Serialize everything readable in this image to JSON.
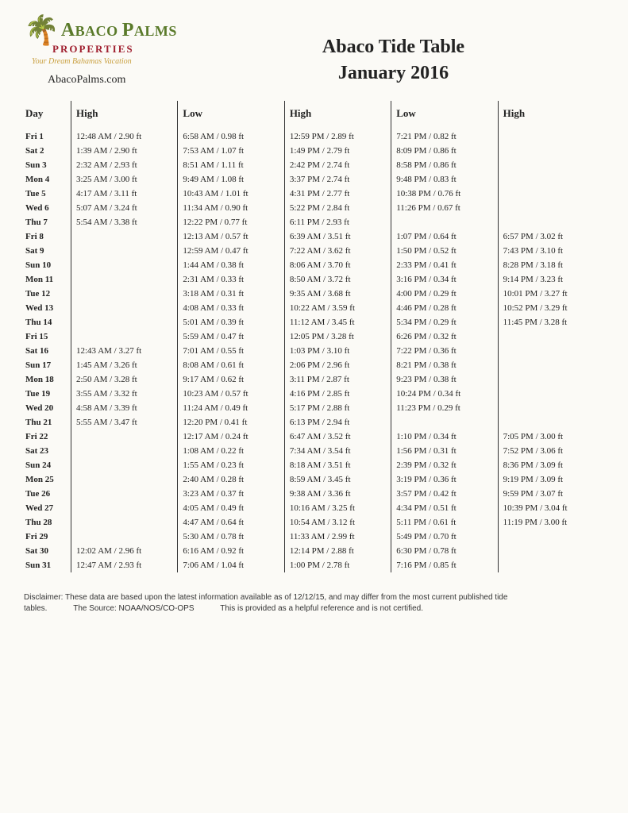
{
  "logo": {
    "line1_a": "A",
    "line1_rest": "BACO ",
    "line1_b": "P",
    "line1_rest2": "ALMS",
    "line2": "PROPERTIES",
    "tagline": "Your Dream Bahamas Vacation",
    "url": "AbacoPalms.com"
  },
  "title1": "Abaco Tide Table",
  "title2": "January  2016",
  "columns": [
    "Day",
    "High",
    "Low",
    "High",
    "Low",
    "High"
  ],
  "rows": [
    {
      "day": "Fri 1",
      "c": [
        [
          "12:48 AM",
          "2.90 ft"
        ],
        [
          "6:58 AM",
          "0.98 ft"
        ],
        [
          "12:59 PM",
          "2.89 ft"
        ],
        [
          "7:21 PM",
          "0.82 ft"
        ],
        [
          "",
          ""
        ]
      ]
    },
    {
      "day": "Sat 2",
      "c": [
        [
          "1:39 AM",
          "2.90 ft"
        ],
        [
          "7:53 AM",
          "1.07 ft"
        ],
        [
          "1:49 PM",
          "2.79 ft"
        ],
        [
          "8:09 PM",
          "0.86 ft"
        ],
        [
          "",
          ""
        ]
      ]
    },
    {
      "day": "Sun 3",
      "c": [
        [
          "2:32 AM",
          "2.93 ft"
        ],
        [
          "8:51 AM",
          "1.11 ft"
        ],
        [
          "2:42 PM",
          "2.74 ft"
        ],
        [
          "8:58 PM",
          "0.86 ft"
        ],
        [
          "",
          ""
        ]
      ]
    },
    {
      "day": "Mon 4",
      "c": [
        [
          "3:25 AM",
          "3.00 ft"
        ],
        [
          "9:49 AM",
          "1.08 ft"
        ],
        [
          "3:37 PM",
          "2.74 ft"
        ],
        [
          "9:48 PM",
          "0.83 ft"
        ],
        [
          "",
          ""
        ]
      ]
    },
    {
      "day": "Tue 5",
      "c": [
        [
          "4:17 AM",
          "3.11 ft"
        ],
        [
          "10:43 AM",
          "1.01 ft"
        ],
        [
          "4:31 PM",
          "2.77 ft"
        ],
        [
          "10:38 PM",
          "0.76 ft"
        ],
        [
          "",
          ""
        ]
      ]
    },
    {
      "day": "Wed 6",
      "c": [
        [
          "5:07 AM",
          "3.24 ft"
        ],
        [
          "11:34 AM",
          "0.90 ft"
        ],
        [
          "5:22 PM",
          "2.84 ft"
        ],
        [
          "11:26 PM",
          "0.67 ft"
        ],
        [
          "",
          ""
        ]
      ]
    },
    {
      "day": "Thu 7",
      "c": [
        [
          "5:54 AM",
          "3.38 ft"
        ],
        [
          "12:22 PM",
          "0.77 ft"
        ],
        [
          "6:11 PM",
          "2.93 ft"
        ],
        [
          "",
          ""
        ],
        [
          "",
          ""
        ]
      ]
    },
    {
      "day": "Fri 8",
      "c": [
        [
          "",
          ""
        ],
        [
          "12:13 AM",
          "0.57 ft"
        ],
        [
          "6:39 AM",
          "3.51 ft"
        ],
        [
          "1:07 PM",
          "0.64 ft"
        ],
        [
          "6:57 PM",
          "3.02 ft"
        ]
      ]
    },
    {
      "day": "Sat 9",
      "c": [
        [
          "",
          ""
        ],
        [
          "12:59 AM",
          "0.47 ft"
        ],
        [
          "7:22 AM",
          "3.62 ft"
        ],
        [
          "1:50 PM",
          "0.52 ft"
        ],
        [
          "7:43 PM",
          "3.10 ft"
        ]
      ]
    },
    {
      "day": "Sun 10",
      "c": [
        [
          "",
          ""
        ],
        [
          "1:44 AM",
          "0.38 ft"
        ],
        [
          "8:06 AM",
          "3.70 ft"
        ],
        [
          "2:33 PM",
          "0.41 ft"
        ],
        [
          "8:28 PM",
          "3.18 ft"
        ]
      ]
    },
    {
      "day": "Mon 11",
      "c": [
        [
          "",
          ""
        ],
        [
          "2:31 AM",
          "0.33 ft"
        ],
        [
          "8:50 AM",
          "3.72 ft"
        ],
        [
          "3:16 PM",
          "0.34 ft"
        ],
        [
          "9:14 PM",
          "3.23 ft"
        ]
      ]
    },
    {
      "day": "Tue 12",
      "c": [
        [
          "",
          ""
        ],
        [
          "3:18 AM",
          "0.31 ft"
        ],
        [
          "9:35 AM",
          "3.68 ft"
        ],
        [
          "4:00 PM",
          "0.29 ft"
        ],
        [
          "10:01 PM",
          "3.27 ft"
        ]
      ]
    },
    {
      "day": "Wed 13",
      "c": [
        [
          "",
          ""
        ],
        [
          "4:08 AM",
          "0.33 ft"
        ],
        [
          "10:22 AM",
          "3.59 ft"
        ],
        [
          "4:46 PM",
          "0.28 ft"
        ],
        [
          "10:52 PM",
          "3.29 ft"
        ]
      ]
    },
    {
      "day": "Thu 14",
      "c": [
        [
          "",
          ""
        ],
        [
          "5:01 AM",
          "0.39 ft"
        ],
        [
          "11:12 AM",
          "3.45 ft"
        ],
        [
          "5:34 PM",
          "0.29 ft"
        ],
        [
          "11:45 PM",
          "3.28 ft"
        ]
      ]
    },
    {
      "day": "Fri 15",
      "c": [
        [
          "",
          ""
        ],
        [
          "5:59 AM",
          "0.47 ft"
        ],
        [
          "12:05 PM",
          "3.28 ft"
        ],
        [
          "6:26 PM",
          "0.32 ft"
        ],
        [
          "",
          ""
        ]
      ]
    },
    {
      "day": "Sat 16",
      "c": [
        [
          "12:43 AM",
          "3.27 ft"
        ],
        [
          "7:01 AM",
          "0.55 ft"
        ],
        [
          "1:03 PM",
          "3.10 ft"
        ],
        [
          "7:22 PM",
          "0.36 ft"
        ],
        [
          "",
          ""
        ]
      ]
    },
    {
      "day": "Sun 17",
      "c": [
        [
          "1:45 AM",
          "3.26 ft"
        ],
        [
          "8:08 AM",
          "0.61 ft"
        ],
        [
          "2:06 PM",
          "2.96 ft"
        ],
        [
          "8:21 PM",
          "0.38 ft"
        ],
        [
          "",
          ""
        ]
      ]
    },
    {
      "day": "Mon 18",
      "c": [
        [
          "2:50 AM",
          "3.28 ft"
        ],
        [
          "9:17 AM",
          "0.62 ft"
        ],
        [
          "3:11 PM",
          "2.87 ft"
        ],
        [
          "9:23 PM",
          "0.38 ft"
        ],
        [
          "",
          ""
        ]
      ]
    },
    {
      "day": "Tue 19",
      "c": [
        [
          "3:55 AM",
          "3.32 ft"
        ],
        [
          "10:23 AM",
          "0.57 ft"
        ],
        [
          "4:16 PM",
          "2.85 ft"
        ],
        [
          "10:24 PM",
          "0.34 ft"
        ],
        [
          "",
          ""
        ]
      ]
    },
    {
      "day": "Wed 20",
      "c": [
        [
          "4:58 AM",
          "3.39 ft"
        ],
        [
          "11:24 AM",
          "0.49 ft"
        ],
        [
          "5:17 PM",
          "2.88 ft"
        ],
        [
          "11:23 PM",
          "0.29 ft"
        ],
        [
          "",
          ""
        ]
      ]
    },
    {
      "day": "Thu 21",
      "c": [
        [
          "5:55 AM",
          "3.47 ft"
        ],
        [
          "12:20 PM",
          "0.41 ft"
        ],
        [
          "6:13 PM",
          "2.94 ft"
        ],
        [
          "",
          ""
        ],
        [
          "",
          ""
        ]
      ]
    },
    {
      "day": "Fri 22",
      "c": [
        [
          "",
          ""
        ],
        [
          "12:17 AM",
          "0.24 ft"
        ],
        [
          "6:47 AM",
          "3.52 ft"
        ],
        [
          "1:10 PM",
          "0.34 ft"
        ],
        [
          "7:05 PM",
          "3.00 ft"
        ]
      ]
    },
    {
      "day": "Sat 23",
      "c": [
        [
          "",
          ""
        ],
        [
          "1:08 AM",
          "0.22 ft"
        ],
        [
          "7:34 AM",
          "3.54 ft"
        ],
        [
          "1:56 PM",
          "0.31 ft"
        ],
        [
          "7:52 PM",
          "3.06 ft"
        ]
      ]
    },
    {
      "day": "Sun 24",
      "c": [
        [
          "",
          ""
        ],
        [
          "1:55 AM",
          "0.23 ft"
        ],
        [
          "8:18 AM",
          "3.51 ft"
        ],
        [
          "2:39 PM",
          "0.32 ft"
        ],
        [
          "8:36 PM",
          "3.09 ft"
        ]
      ]
    },
    {
      "day": "Mon 25",
      "c": [
        [
          "",
          ""
        ],
        [
          "2:40 AM",
          "0.28 ft"
        ],
        [
          "8:59 AM",
          "3.45 ft"
        ],
        [
          "3:19 PM",
          "0.36 ft"
        ],
        [
          "9:19 PM",
          "3.09 ft"
        ]
      ]
    },
    {
      "day": "Tue 26",
      "c": [
        [
          "",
          ""
        ],
        [
          "3:23 AM",
          "0.37 ft"
        ],
        [
          "9:38 AM",
          "3.36 ft"
        ],
        [
          "3:57 PM",
          "0.42 ft"
        ],
        [
          "9:59 PM",
          "3.07 ft"
        ]
      ]
    },
    {
      "day": "Wed 27",
      "c": [
        [
          "",
          ""
        ],
        [
          "4:05 AM",
          "0.49 ft"
        ],
        [
          "10:16 AM",
          "3.25 ft"
        ],
        [
          "4:34 PM",
          "0.51 ft"
        ],
        [
          "10:39 PM",
          "3.04 ft"
        ]
      ]
    },
    {
      "day": "Thu 28",
      "c": [
        [
          "",
          ""
        ],
        [
          "4:47 AM",
          "0.64 ft"
        ],
        [
          "10:54 AM",
          "3.12 ft"
        ],
        [
          "5:11 PM",
          "0.61 ft"
        ],
        [
          "11:19 PM",
          "3.00 ft"
        ]
      ]
    },
    {
      "day": "Fri 29",
      "c": [
        [
          "",
          ""
        ],
        [
          "5:30 AM",
          "0.78 ft"
        ],
        [
          "11:33 AM",
          "2.99 ft"
        ],
        [
          "5:49 PM",
          "0.70 ft"
        ],
        [
          "",
          ""
        ]
      ]
    },
    {
      "day": "Sat 30",
      "c": [
        [
          "12:02 AM",
          "2.96 ft"
        ],
        [
          "6:16 AM",
          "0.92 ft"
        ],
        [
          "12:14 PM",
          "2.88 ft"
        ],
        [
          "6:30 PM",
          "0.78 ft"
        ],
        [
          "",
          ""
        ]
      ]
    },
    {
      "day": "Sun 31",
      "c": [
        [
          "12:47 AM",
          "2.93 ft"
        ],
        [
          "7:06 AM",
          "1.04 ft"
        ],
        [
          "1:00 PM",
          "2.78 ft"
        ],
        [
          "7:16 PM",
          "0.85 ft"
        ],
        [
          "",
          ""
        ]
      ]
    }
  ],
  "disclaimer": {
    "line1": "Disclaimer: These data are based upon the latest information available as of 12/12/15, and may differ from the most current published tide",
    "line2a": "tables.",
    "line2b": "The Source: NOAA/NOS/CO-OPS",
    "line2c": "This is provided as a helpful reference and is not certified."
  }
}
